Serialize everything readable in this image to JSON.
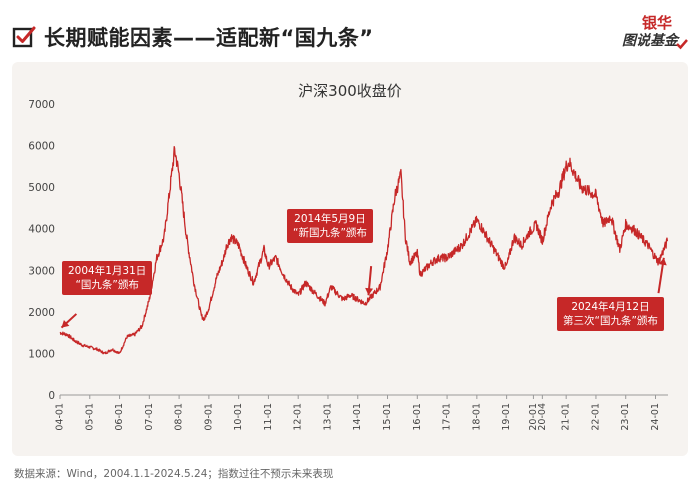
{
  "header": {
    "title": "长期赋能因素——适配新“国九条”",
    "brand_line1": "银华",
    "brand_line2": "图说基金"
  },
  "colors": {
    "accent": "#c62828",
    "panel": "#f6f3f0",
    "text": "#222222"
  },
  "chart_data": {
    "type": "line",
    "title": "沪深300收盘价",
    "xlabel": "",
    "ylabel": "",
    "ylim": [
      0,
      7000
    ],
    "yticks": [
      "0",
      "1000",
      "2000",
      "3000",
      "4000",
      "5000",
      "6000",
      "7000"
    ],
    "xticks": [
      "04-01",
      "05-01",
      "06-01",
      "07-01",
      "08-01",
      "09-01",
      "10-01",
      "11-01",
      "12-01",
      "13-01",
      "14-01",
      "15-01",
      "16-01",
      "17-01",
      "18-01",
      "19-01",
      "20-01",
      "20-04",
      "21-01",
      "22-01",
      "23-01",
      "24-01"
    ],
    "series": [
      {
        "name": "沪深300收盘价",
        "x": [
          2004.0,
          2004.25,
          2004.5,
          2004.75,
          2005.0,
          2005.25,
          2005.5,
          2005.75,
          2006.0,
          2006.25,
          2006.5,
          2006.75,
          2007.0,
          2007.25,
          2007.5,
          2007.75,
          2007.85,
          2008.0,
          2008.25,
          2008.5,
          2008.75,
          2008.85,
          2009.0,
          2009.25,
          2009.5,
          2009.6,
          2009.75,
          2010.0,
          2010.25,
          2010.5,
          2010.85,
          2011.0,
          2011.25,
          2011.5,
          2011.75,
          2012.0,
          2012.25,
          2012.5,
          2012.9,
          2013.1,
          2013.5,
          2013.75,
          2014.0,
          2014.25,
          2014.5,
          2014.75,
          2015.0,
          2015.25,
          2015.45,
          2015.6,
          2015.75,
          2016.0,
          2016.1,
          2016.5,
          2016.75,
          2017.0,
          2017.5,
          2018.0,
          2018.1,
          2018.5,
          2018.9,
          2019.0,
          2019.25,
          2019.5,
          2019.75,
          2020.0,
          2020.2,
          2020.5,
          2020.75,
          2021.0,
          2021.1,
          2021.5,
          2021.75,
          2022.0,
          2022.25,
          2022.5,
          2022.8,
          2023.0,
          2023.25,
          2023.5,
          2023.75,
          2024.0,
          2024.1,
          2024.28,
          2024.4
        ],
        "values": [
          1500,
          1450,
          1300,
          1200,
          1150,
          1100,
          1000,
          1100,
          1000,
          1400,
          1450,
          1650,
          2300,
          3300,
          3800,
          5300,
          5900,
          5300,
          3800,
          2700,
          1900,
          1820,
          2100,
          2800,
          3300,
          3600,
          3800,
          3600,
          3100,
          2700,
          3500,
          3100,
          3300,
          2900,
          2600,
          2400,
          2700,
          2500,
          2200,
          2600,
          2300,
          2400,
          2300,
          2200,
          2400,
          2600,
          3500,
          4800,
          5300,
          3800,
          3200,
          3400,
          2900,
          3200,
          3300,
          3300,
          3600,
          4200,
          4100,
          3600,
          3100,
          3100,
          3800,
          3600,
          3900,
          4100,
          3700,
          4600,
          4900,
          5500,
          5600,
          5000,
          4900,
          4800,
          4100,
          4300,
          3500,
          4100,
          4000,
          3800,
          3600,
          3300,
          3200,
          3500,
          3700
        ]
      }
    ],
    "annotations": [
      {
        "label": "2004年1月31日\n“国九条”颁布",
        "date": "2004-01-31",
        "x": 2004.1,
        "value": 1500
      },
      {
        "label": "2014年5月9日\n“新国九条”颁布",
        "date": "2014-05-09",
        "x": 2014.36,
        "value": 2200
      },
      {
        "label": "2024年4月12日\n第三次“国九条”颁布",
        "date": "2024-04-12",
        "x": 2024.28,
        "value": 3500
      }
    ]
  },
  "footer": {
    "source": "数据来源：Wind，2004.1.1-2024.5.24；指数过往不预示未来表现"
  }
}
